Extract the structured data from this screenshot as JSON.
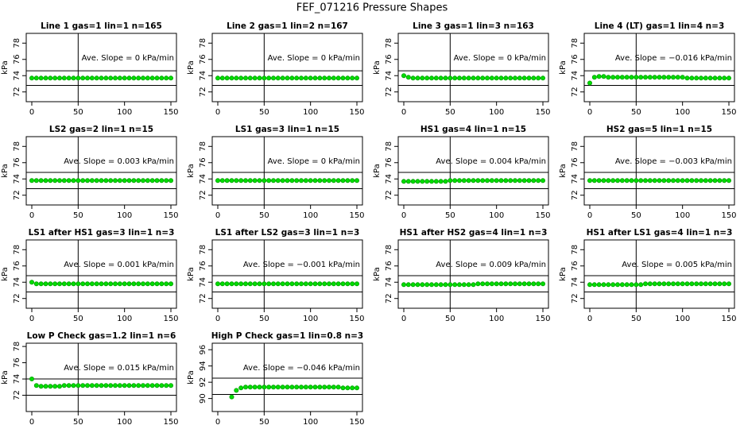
{
  "title": "FEF_071216  Pressure Shapes",
  "chart_data": [
    {
      "type": "scatter",
      "title": "Line 1 gas=1 lin=1 n=165",
      "annotation": "Ave. Slope = 0 kPa/min",
      "ylabel": "kPa",
      "color": "#00dd00",
      "x": [
        0,
        5,
        10,
        15,
        20,
        25,
        30,
        35,
        40,
        45,
        50,
        55,
        60,
        65,
        70,
        75,
        80,
        85,
        90,
        95,
        100,
        105,
        110,
        115,
        120,
        125,
        130,
        135,
        140,
        145,
        150
      ],
      "values": [
        73.7,
        73.7,
        73.7,
        73.7,
        73.7,
        73.7,
        73.7,
        73.7,
        73.7,
        73.7,
        73.7,
        73.7,
        73.7,
        73.7,
        73.7,
        73.7,
        73.7,
        73.7,
        73.7,
        73.7,
        73.7,
        73.7,
        73.7,
        73.7,
        73.7,
        73.7,
        73.7,
        73.7,
        73.7,
        73.7,
        73.7
      ],
      "xlim": [
        -6,
        156
      ],
      "ylim": [
        70.8,
        79.2
      ],
      "xticks": [
        0,
        50,
        100,
        150
      ],
      "yticks": [
        72,
        74,
        76,
        78
      ],
      "hlines": [
        74.6,
        72.8
      ],
      "vlines": [
        50
      ]
    },
    {
      "type": "scatter",
      "title": "Line 2 gas=1 lin=2 n=167",
      "annotation": "Ave. Slope = 0 kPa/min",
      "ylabel": "kPa",
      "color": "#00dd00",
      "x": [
        0,
        5,
        10,
        15,
        20,
        25,
        30,
        35,
        40,
        45,
        50,
        55,
        60,
        65,
        70,
        75,
        80,
        85,
        90,
        95,
        100,
        105,
        110,
        115,
        120,
        125,
        130,
        135,
        140,
        145,
        150
      ],
      "values": [
        73.7,
        73.7,
        73.7,
        73.7,
        73.7,
        73.7,
        73.7,
        73.7,
        73.7,
        73.7,
        73.7,
        73.7,
        73.7,
        73.7,
        73.7,
        73.7,
        73.7,
        73.7,
        73.7,
        73.7,
        73.7,
        73.7,
        73.7,
        73.7,
        73.7,
        73.7,
        73.7,
        73.7,
        73.7,
        73.7,
        73.7
      ],
      "xlim": [
        -6,
        156
      ],
      "ylim": [
        70.8,
        79.2
      ],
      "xticks": [
        0,
        50,
        100,
        150
      ],
      "yticks": [
        72,
        74,
        76,
        78
      ],
      "hlines": [
        74.6,
        72.8
      ],
      "vlines": [
        50
      ]
    },
    {
      "type": "scatter",
      "title": "Line 3 gas=1 lin=3 n=163",
      "annotation": "Ave. Slope = 0 kPa/min",
      "ylabel": "kPa",
      "color": "#00dd00",
      "x": [
        0,
        5,
        10,
        15,
        20,
        25,
        30,
        35,
        40,
        45,
        50,
        55,
        60,
        65,
        70,
        75,
        80,
        85,
        90,
        95,
        100,
        105,
        110,
        115,
        120,
        125,
        130,
        135,
        140,
        145,
        150
      ],
      "values": [
        74.0,
        73.8,
        73.7,
        73.7,
        73.7,
        73.7,
        73.7,
        73.7,
        73.7,
        73.7,
        73.7,
        73.7,
        73.7,
        73.7,
        73.7,
        73.7,
        73.7,
        73.7,
        73.7,
        73.7,
        73.7,
        73.7,
        73.7,
        73.7,
        73.7,
        73.7,
        73.7,
        73.7,
        73.7,
        73.7,
        73.7
      ],
      "xlim": [
        -6,
        156
      ],
      "ylim": [
        70.8,
        79.2
      ],
      "xticks": [
        0,
        50,
        100,
        150
      ],
      "yticks": [
        72,
        74,
        76,
        78
      ],
      "hlines": [
        74.6,
        72.8
      ],
      "vlines": [
        50
      ]
    },
    {
      "type": "scatter",
      "title": "Line 4 (LT) gas=1 lin=4 n=3",
      "annotation": "Ave. Slope = −0.016  kPa/min",
      "ylabel": "kPa",
      "color": "#00dd00",
      "x": [
        0,
        5,
        10,
        15,
        20,
        25,
        30,
        35,
        40,
        45,
        50,
        55,
        60,
        65,
        70,
        75,
        80,
        85,
        90,
        95,
        100,
        105,
        110,
        115,
        120,
        125,
        130,
        135,
        140,
        145,
        150
      ],
      "values": [
        73.1,
        73.8,
        73.9,
        73.9,
        73.8,
        73.8,
        73.8,
        73.8,
        73.8,
        73.8,
        73.8,
        73.8,
        73.8,
        73.8,
        73.8,
        73.8,
        73.8,
        73.8,
        73.8,
        73.8,
        73.8,
        73.7,
        73.7,
        73.7,
        73.7,
        73.7,
        73.7,
        73.7,
        73.7,
        73.7,
        73.7
      ],
      "xlim": [
        -6,
        156
      ],
      "ylim": [
        70.8,
        79.2
      ],
      "xticks": [
        0,
        50,
        100,
        150
      ],
      "yticks": [
        72,
        74,
        76,
        78
      ],
      "hlines": [
        74.6,
        72.8
      ],
      "vlines": [
        50
      ]
    },
    {
      "type": "scatter",
      "title": "LS2 gas=2 lin=1 n=15",
      "annotation": "Ave. Slope = 0.003  kPa/min",
      "ylabel": "kPa",
      "color": "#00dd00",
      "x": [
        0,
        5,
        10,
        15,
        20,
        25,
        30,
        35,
        40,
        45,
        50,
        55,
        60,
        65,
        70,
        75,
        80,
        85,
        90,
        95,
        100,
        105,
        110,
        115,
        120,
        125,
        130,
        135,
        140,
        145,
        150
      ],
      "values": [
        73.8,
        73.8,
        73.8,
        73.8,
        73.8,
        73.8,
        73.8,
        73.8,
        73.8,
        73.8,
        73.8,
        73.8,
        73.8,
        73.8,
        73.8,
        73.8,
        73.8,
        73.8,
        73.8,
        73.8,
        73.8,
        73.8,
        73.8,
        73.8,
        73.8,
        73.8,
        73.8,
        73.8,
        73.8,
        73.8,
        73.8
      ],
      "xlim": [
        -6,
        156
      ],
      "ylim": [
        70.8,
        79.2
      ],
      "xticks": [
        0,
        50,
        100,
        150
      ],
      "yticks": [
        72,
        74,
        76,
        78
      ],
      "hlines": [
        74.8,
        72.8
      ],
      "vlines": [
        50
      ]
    },
    {
      "type": "scatter",
      "title": "LS1 gas=3 lin=1 n=15",
      "annotation": "Ave. Slope = 0 kPa/min",
      "ylabel": "kPa",
      "color": "#00dd00",
      "x": [
        0,
        5,
        10,
        15,
        20,
        25,
        30,
        35,
        40,
        45,
        50,
        55,
        60,
        65,
        70,
        75,
        80,
        85,
        90,
        95,
        100,
        105,
        110,
        115,
        120,
        125,
        130,
        135,
        140,
        145,
        150
      ],
      "values": [
        73.8,
        73.8,
        73.8,
        73.8,
        73.8,
        73.8,
        73.8,
        73.8,
        73.8,
        73.8,
        73.8,
        73.8,
        73.8,
        73.8,
        73.8,
        73.8,
        73.8,
        73.8,
        73.8,
        73.8,
        73.8,
        73.8,
        73.8,
        73.8,
        73.8,
        73.8,
        73.8,
        73.8,
        73.8,
        73.8,
        73.8
      ],
      "xlim": [
        -6,
        156
      ],
      "ylim": [
        70.8,
        79.2
      ],
      "xticks": [
        0,
        50,
        100,
        150
      ],
      "yticks": [
        72,
        74,
        76,
        78
      ],
      "hlines": [
        74.8,
        72.8
      ],
      "vlines": [
        50
      ]
    },
    {
      "type": "scatter",
      "title": "HS1 gas=4 lin=1 n=15",
      "annotation": "Ave. Slope = 0.004  kPa/min",
      "ylabel": "kPa",
      "color": "#00dd00",
      "x": [
        0,
        5,
        10,
        15,
        20,
        25,
        30,
        35,
        40,
        45,
        50,
        55,
        60,
        65,
        70,
        75,
        80,
        85,
        90,
        95,
        100,
        105,
        110,
        115,
        120,
        125,
        130,
        135,
        140,
        145,
        150
      ],
      "values": [
        73.7,
        73.7,
        73.7,
        73.7,
        73.7,
        73.7,
        73.7,
        73.7,
        73.7,
        73.7,
        73.8,
        73.8,
        73.8,
        73.8,
        73.8,
        73.8,
        73.8,
        73.8,
        73.8,
        73.8,
        73.8,
        73.8,
        73.8,
        73.8,
        73.8,
        73.8,
        73.8,
        73.8,
        73.8,
        73.8,
        73.8
      ],
      "xlim": [
        -6,
        156
      ],
      "ylim": [
        70.8,
        79.2
      ],
      "xticks": [
        0,
        50,
        100,
        150
      ],
      "yticks": [
        72,
        74,
        76,
        78
      ],
      "hlines": [
        74.8,
        72.8
      ],
      "vlines": [
        50
      ]
    },
    {
      "type": "scatter",
      "title": "HS2 gas=5 lin=1 n=15",
      "annotation": "Ave. Slope = −0.003  kPa/min",
      "ylabel": "kPa",
      "color": "#00dd00",
      "x": [
        0,
        5,
        10,
        15,
        20,
        25,
        30,
        35,
        40,
        45,
        50,
        55,
        60,
        65,
        70,
        75,
        80,
        85,
        90,
        95,
        100,
        105,
        110,
        115,
        120,
        125,
        130,
        135,
        140,
        145,
        150
      ],
      "values": [
        73.8,
        73.8,
        73.8,
        73.8,
        73.8,
        73.8,
        73.8,
        73.8,
        73.8,
        73.8,
        73.8,
        73.8,
        73.8,
        73.8,
        73.8,
        73.8,
        73.8,
        73.8,
        73.8,
        73.8,
        73.8,
        73.8,
        73.8,
        73.8,
        73.8,
        73.8,
        73.8,
        73.8,
        73.8,
        73.8,
        73.8
      ],
      "xlim": [
        -6,
        156
      ],
      "ylim": [
        70.8,
        79.2
      ],
      "xticks": [
        0,
        50,
        100,
        150
      ],
      "yticks": [
        72,
        74,
        76,
        78
      ],
      "hlines": [
        74.8,
        72.8
      ],
      "vlines": [
        50
      ]
    },
    {
      "type": "scatter",
      "title": "LS1 after HS1 gas=3 lin=1 n=3",
      "annotation": "Ave. Slope = 0.001  kPa/min",
      "ylabel": "kPa",
      "color": "#00dd00",
      "x": [
        0,
        5,
        10,
        15,
        20,
        25,
        30,
        35,
        40,
        45,
        50,
        55,
        60,
        65,
        70,
        75,
        80,
        85,
        90,
        95,
        100,
        105,
        110,
        115,
        120,
        125,
        130,
        135,
        140,
        145,
        150
      ],
      "values": [
        74.0,
        73.8,
        73.8,
        73.8,
        73.8,
        73.8,
        73.8,
        73.8,
        73.8,
        73.8,
        73.8,
        73.8,
        73.8,
        73.8,
        73.8,
        73.8,
        73.8,
        73.8,
        73.8,
        73.8,
        73.8,
        73.8,
        73.8,
        73.8,
        73.8,
        73.8,
        73.8,
        73.8,
        73.8,
        73.8,
        73.8
      ],
      "xlim": [
        -6,
        156
      ],
      "ylim": [
        70.8,
        79.2
      ],
      "xticks": [
        0,
        50,
        100,
        150
      ],
      "yticks": [
        72,
        74,
        76,
        78
      ],
      "hlines": [
        74.8,
        72.8
      ],
      "vlines": [
        50
      ]
    },
    {
      "type": "scatter",
      "title": "LS1 after LS2 gas=3 lin=1 n=3",
      "annotation": "Ave. Slope = −0.001  kPa/min",
      "ylabel": "kPa",
      "color": "#00dd00",
      "x": [
        0,
        5,
        10,
        15,
        20,
        25,
        30,
        35,
        40,
        45,
        50,
        55,
        60,
        65,
        70,
        75,
        80,
        85,
        90,
        95,
        100,
        105,
        110,
        115,
        120,
        125,
        130,
        135,
        140,
        145,
        150
      ],
      "values": [
        73.8,
        73.8,
        73.8,
        73.8,
        73.8,
        73.8,
        73.8,
        73.8,
        73.8,
        73.8,
        73.8,
        73.8,
        73.8,
        73.8,
        73.8,
        73.8,
        73.8,
        73.8,
        73.8,
        73.8,
        73.8,
        73.8,
        73.8,
        73.8,
        73.8,
        73.8,
        73.8,
        73.8,
        73.8,
        73.8,
        73.8
      ],
      "xlim": [
        -6,
        156
      ],
      "ylim": [
        70.8,
        79.2
      ],
      "xticks": [
        0,
        50,
        100,
        150
      ],
      "yticks": [
        72,
        74,
        76,
        78
      ],
      "hlines": [
        74.8,
        72.8
      ],
      "vlines": [
        50
      ]
    },
    {
      "type": "scatter",
      "title": "HS1 after HS2 gas=4 lin=1 n=3",
      "annotation": "Ave. Slope = 0.009  kPa/min",
      "ylabel": "kPa",
      "color": "#00dd00",
      "x": [
        0,
        5,
        10,
        15,
        20,
        25,
        30,
        35,
        40,
        45,
        50,
        55,
        60,
        65,
        70,
        75,
        80,
        85,
        90,
        95,
        100,
        105,
        110,
        115,
        120,
        125,
        130,
        135,
        140,
        145,
        150
      ],
      "values": [
        73.7,
        73.7,
        73.7,
        73.7,
        73.7,
        73.7,
        73.7,
        73.7,
        73.7,
        73.7,
        73.7,
        73.7,
        73.7,
        73.7,
        73.7,
        73.7,
        73.8,
        73.8,
        73.8,
        73.8,
        73.8,
        73.8,
        73.8,
        73.8,
        73.8,
        73.8,
        73.8,
        73.8,
        73.8,
        73.8,
        73.8
      ],
      "xlim": [
        -6,
        156
      ],
      "ylim": [
        70.8,
        79.2
      ],
      "xticks": [
        0,
        50,
        100,
        150
      ],
      "yticks": [
        72,
        74,
        76,
        78
      ],
      "hlines": [
        74.8,
        72.8
      ],
      "vlines": [
        50
      ]
    },
    {
      "type": "scatter",
      "title": "HS1 after LS1 gas=4 lin=1 n=3",
      "annotation": "Ave. Slope = 0.005  kPa/min",
      "ylabel": "kPa",
      "color": "#00dd00",
      "x": [
        0,
        5,
        10,
        15,
        20,
        25,
        30,
        35,
        40,
        45,
        50,
        55,
        60,
        65,
        70,
        75,
        80,
        85,
        90,
        95,
        100,
        105,
        110,
        115,
        120,
        125,
        130,
        135,
        140,
        145,
        150
      ],
      "values": [
        73.7,
        73.7,
        73.7,
        73.7,
        73.7,
        73.7,
        73.7,
        73.7,
        73.7,
        73.7,
        73.7,
        73.7,
        73.8,
        73.8,
        73.8,
        73.8,
        73.8,
        73.8,
        73.8,
        73.8,
        73.8,
        73.8,
        73.8,
        73.8,
        73.8,
        73.8,
        73.8,
        73.8,
        73.8,
        73.8,
        73.8
      ],
      "xlim": [
        -6,
        156
      ],
      "ylim": [
        70.8,
        79.2
      ],
      "xticks": [
        0,
        50,
        100,
        150
      ],
      "yticks": [
        72,
        74,
        76,
        78
      ],
      "hlines": [
        74.8,
        72.8
      ],
      "vlines": [
        50
      ]
    },
    {
      "type": "scatter",
      "title": "Low P Check gas=1.2 lin=1 n=6",
      "annotation": "Ave. Slope = 0.015  kPa/min",
      "ylabel": "kPa",
      "color": "#00dd00",
      "x": [
        0,
        5,
        10,
        15,
        20,
        25,
        30,
        35,
        40,
        45,
        50,
        55,
        60,
        65,
        70,
        75,
        80,
        85,
        90,
        95,
        100,
        105,
        110,
        115,
        120,
        125,
        130,
        135,
        140,
        145,
        150
      ],
      "values": [
        74.0,
        73.2,
        73.1,
        73.1,
        73.1,
        73.1,
        73.1,
        73.2,
        73.2,
        73.2,
        73.2,
        73.2,
        73.2,
        73.2,
        73.2,
        73.2,
        73.2,
        73.2,
        73.2,
        73.2,
        73.2,
        73.2,
        73.2,
        73.2,
        73.2,
        73.2,
        73.2,
        73.2,
        73.2,
        73.2,
        73.2
      ],
      "xlim": [
        -6,
        156
      ],
      "ylim": [
        70.0,
        78.4
      ],
      "xticks": [
        0,
        50,
        100,
        150
      ],
      "yticks": [
        72,
        74,
        76,
        78
      ],
      "hlines": [
        74.0,
        72.0
      ],
      "vlines": [
        50
      ]
    },
    {
      "type": "scatter",
      "title": "High P Check gas=1 lin=0.8 n=3",
      "annotation": "Ave. Slope = −0.046  kPa/min",
      "ylabel": "kPa",
      "color": "#00dd00",
      "x": [
        0,
        5,
        10,
        15,
        20,
        25,
        30,
        35,
        40,
        45,
        50,
        55,
        60,
        65,
        70,
        75,
        80,
        85,
        90,
        95,
        100,
        105,
        110,
        115,
        120,
        125,
        130,
        135,
        140,
        145,
        150
      ],
      "values": [
        null,
        null,
        null,
        90.2,
        91.0,
        91.3,
        91.4,
        91.4,
        91.4,
        91.4,
        91.4,
        91.4,
        91.4,
        91.4,
        91.4,
        91.4,
        91.4,
        91.4,
        91.4,
        91.4,
        91.4,
        91.4,
        91.4,
        91.4,
        91.4,
        91.4,
        91.4,
        91.3,
        91.3,
        91.3,
        91.3
      ],
      "xlim": [
        -6,
        156
      ],
      "ylim": [
        88.4,
        96.8
      ],
      "xticks": [
        0,
        50,
        100,
        150
      ],
      "yticks": [
        90,
        92,
        94,
        96
      ],
      "hlines": [
        92.5,
        90.5
      ],
      "vlines": [
        50
      ]
    }
  ]
}
